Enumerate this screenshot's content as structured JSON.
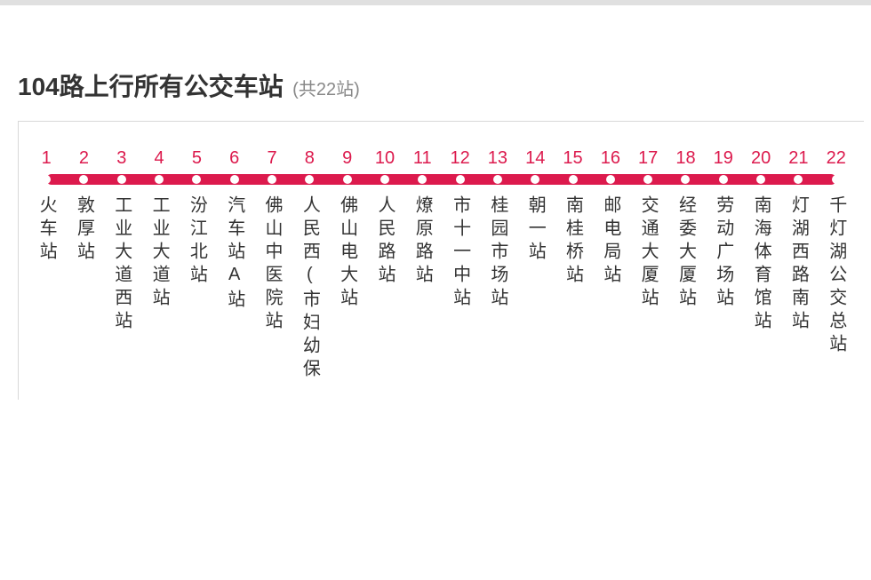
{
  "title": {
    "main": "104路上行所有公交车站",
    "sub": "(共22站)"
  },
  "route": {
    "type": "line-map",
    "line_color": "#dc1a4d",
    "dot_fill": "#ffffff",
    "number_color": "#dc1a4d",
    "name_color": "#333333",
    "border_color": "#d8d8d8",
    "num_fontsize": 20,
    "name_fontsize": 20,
    "track_height": 12,
    "dot_diameter": 10,
    "stops": [
      {
        "n": "1",
        "name": "火车站"
      },
      {
        "n": "2",
        "name": "敦厚站"
      },
      {
        "n": "3",
        "name": "工业大道西站"
      },
      {
        "n": "4",
        "name": "工业大道站"
      },
      {
        "n": "5",
        "name": "汾江北站"
      },
      {
        "n": "6",
        "name": "汽车站A站"
      },
      {
        "n": "7",
        "name": "佛山中医院站"
      },
      {
        "n": "8",
        "name": "人民西(市妇幼保"
      },
      {
        "n": "9",
        "name": "佛山电大站"
      },
      {
        "n": "10",
        "name": "人民路站"
      },
      {
        "n": "11",
        "name": "燎原路站"
      },
      {
        "n": "12",
        "name": "市十一中站"
      },
      {
        "n": "13",
        "name": "桂园市场站"
      },
      {
        "n": "14",
        "name": "朝一站"
      },
      {
        "n": "15",
        "name": "南桂桥站"
      },
      {
        "n": "16",
        "name": "邮电局站"
      },
      {
        "n": "17",
        "name": "交通大厦站"
      },
      {
        "n": "18",
        "name": "经委大厦站"
      },
      {
        "n": "19",
        "name": "劳动广场站"
      },
      {
        "n": "20",
        "name": "南海体育馆站"
      },
      {
        "n": "21",
        "name": "灯湖西路南站"
      },
      {
        "n": "22",
        "name": "千灯湖公交总站"
      }
    ]
  }
}
